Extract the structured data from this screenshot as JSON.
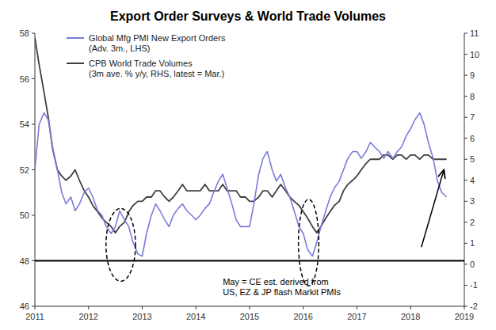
{
  "chart_data": {
    "type": "line",
    "title": "Export Order Surveys & World Trade Volumes",
    "x": [
      2011.0,
      2011.08,
      2011.17,
      2011.25,
      2011.33,
      2011.42,
      2011.5,
      2011.58,
      2011.67,
      2011.75,
      2011.83,
      2011.92,
      2012.0,
      2012.08,
      2012.17,
      2012.25,
      2012.33,
      2012.42,
      2012.5,
      2012.58,
      2012.67,
      2012.75,
      2012.83,
      2012.92,
      2013.0,
      2013.08,
      2013.17,
      2013.25,
      2013.33,
      2013.42,
      2013.5,
      2013.58,
      2013.67,
      2013.75,
      2013.83,
      2013.92,
      2014.0,
      2014.08,
      2014.17,
      2014.25,
      2014.33,
      2014.42,
      2014.5,
      2014.58,
      2014.67,
      2014.75,
      2014.83,
      2014.92,
      2015.0,
      2015.08,
      2015.17,
      2015.25,
      2015.33,
      2015.42,
      2015.5,
      2015.58,
      2015.67,
      2015.75,
      2015.83,
      2015.92,
      2016.0,
      2016.08,
      2016.17,
      2016.25,
      2016.33,
      2016.42,
      2016.5,
      2016.58,
      2016.67,
      2016.75,
      2016.83,
      2016.92,
      2017.0,
      2017.08,
      2017.17,
      2017.25,
      2017.33,
      2017.42,
      2017.5,
      2017.58,
      2017.67,
      2017.75,
      2017.83,
      2017.92,
      2018.0,
      2018.08,
      2018.17,
      2018.25,
      2018.33,
      2018.42,
      2018.5,
      2018.58,
      2018.67
    ],
    "xlim": [
      2011.0,
      2019.0
    ],
    "xticks": [
      2011,
      2012,
      2013,
      2014,
      2015,
      2016,
      2017,
      2018,
      2019
    ],
    "ylim": [
      46,
      58
    ],
    "yticks": [
      46,
      48,
      50,
      52,
      54,
      56,
      58
    ],
    "y2lim": [
      -2,
      11
    ],
    "y2ticks": [
      -2,
      -1,
      0,
      1,
      2,
      3,
      4,
      5,
      6,
      7,
      8,
      9,
      10,
      11
    ],
    "legend": "upper left",
    "grid": false,
    "series": [
      {
        "name": "Global Mfg PMI New Export Orders\n(Adv. 3m., LHS)",
        "color": "#7b7bdb",
        "values": [
          52.0,
          54.0,
          54.5,
          54.2,
          53.0,
          52.0,
          51.0,
          50.5,
          50.8,
          50.2,
          50.5,
          51.0,
          51.2,
          50.8,
          50.2,
          50.0,
          49.5,
          49.2,
          49.5,
          50.2,
          49.8,
          49.5,
          48.8,
          48.3,
          48.2,
          49.2,
          50.0,
          50.5,
          50.2,
          49.8,
          49.5,
          50.0,
          50.3,
          50.5,
          50.2,
          50.0,
          49.8,
          50.0,
          50.3,
          50.5,
          51.0,
          51.5,
          51.8,
          51.2,
          50.5,
          49.8,
          49.5,
          49.5,
          49.5,
          50.5,
          51.8,
          52.5,
          52.8,
          52.0,
          51.5,
          51.8,
          51.2,
          50.8,
          50.2,
          49.5,
          49.2,
          48.5,
          48.2,
          48.8,
          49.5,
          50.2,
          50.8,
          51.2,
          51.5,
          52.0,
          52.5,
          52.8,
          52.8,
          52.5,
          52.8,
          53.2,
          53.0,
          52.8,
          52.5,
          52.8,
          52.5,
          52.8,
          53.0,
          53.5,
          53.8,
          54.2,
          54.5,
          54.0,
          53.2,
          52.5,
          51.5,
          51.0,
          50.8
        ]
      },
      {
        "name": "CPB World Trade Volumes\n(3m ave. % y/y, RHS, latest = Mar.)",
        "color": "#404040",
        "axis": "y2",
        "values": [
          10.8,
          9.5,
          8.2,
          7.0,
          5.5,
          4.5,
          4.2,
          4.0,
          4.2,
          4.5,
          4.0,
          3.5,
          3.2,
          2.8,
          2.5,
          2.2,
          2.0,
          1.8,
          1.5,
          1.8,
          2.0,
          2.5,
          2.8,
          3.0,
          3.0,
          3.2,
          3.2,
          3.5,
          3.5,
          3.2,
          3.0,
          3.2,
          3.5,
          3.8,
          3.5,
          3.5,
          3.5,
          3.5,
          3.8,
          3.5,
          3.5,
          3.5,
          3.8,
          3.5,
          3.5,
          3.5,
          3.2,
          3.2,
          3.0,
          3.0,
          3.2,
          3.5,
          3.5,
          3.2,
          3.5,
          3.8,
          3.5,
          3.2,
          3.0,
          2.8,
          2.5,
          2.2,
          1.8,
          1.5,
          1.8,
          2.2,
          2.5,
          2.8,
          3.0,
          3.5,
          3.8,
          4.0,
          4.2,
          4.5,
          4.8,
          5.0,
          5.0,
          5.0,
          5.2,
          5.2,
          5.0,
          5.2,
          5.2,
          5.0,
          5.2,
          5.2,
          5.0,
          5.2,
          5.2,
          5.0,
          5.0,
          5.0,
          5.0
        ]
      }
    ],
    "hlines": [
      {
        "y": 48,
        "color": "#000000"
      }
    ],
    "annotations": [
      {
        "text": "May = CE est. derived from\nUS, EZ & JP flash Markit PMIs",
        "x": 2014.5,
        "y": 47.3
      }
    ],
    "ellipses": [
      {
        "x": 2012.6,
        "y": 48.7,
        "width": 0.55,
        "height": 3.2
      },
      {
        "x": 2016.1,
        "y": 48.8,
        "width": 0.38,
        "height": 3.8
      }
    ],
    "arrows": [
      {
        "x": 2018.62,
        "y": 52.0,
        "from_x": 2018.2,
        "from_y": 48.6
      }
    ]
  }
}
